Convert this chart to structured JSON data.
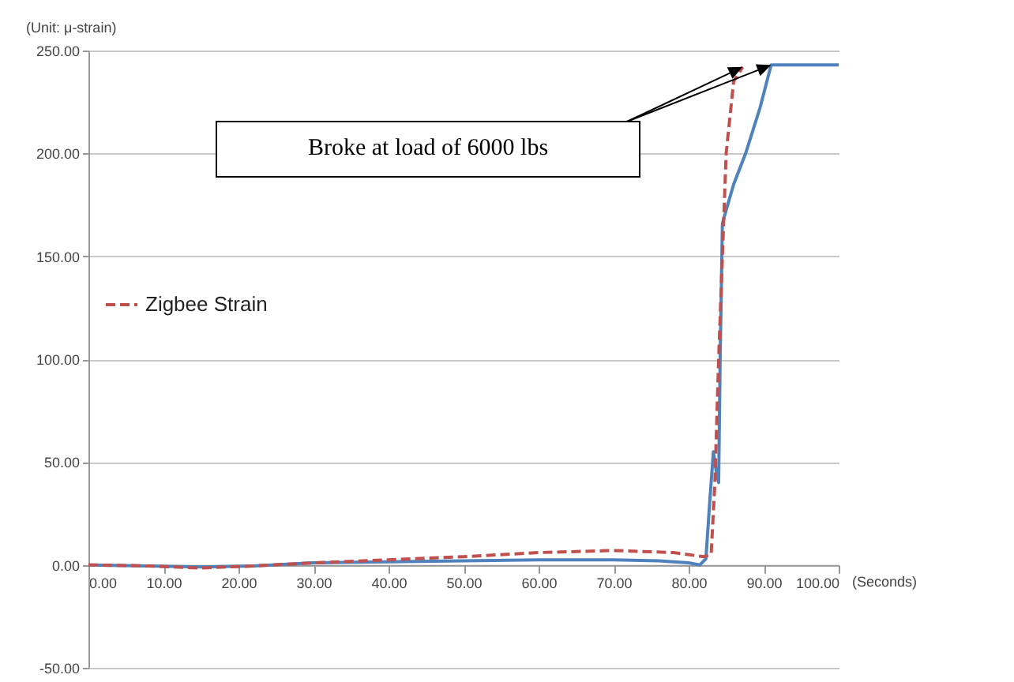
{
  "chart_data": {
    "type": "line",
    "ylabel": "(Unit: μ-strain)",
    "xlabel": "(Seconds)",
    "annotations": [
      "Broke at load of 6000 lbs"
    ],
    "xlim": [
      0,
      100
    ],
    "xticks": [
      {
        "value": 0,
        "label": "0.00"
      },
      {
        "value": 10,
        "label": "10.00"
      },
      {
        "value": 20,
        "label": "20.00"
      },
      {
        "value": 30,
        "label": "30.00"
      },
      {
        "value": 40,
        "label": "40.00"
      },
      {
        "value": 50,
        "label": "50.00"
      },
      {
        "value": 60,
        "label": "60.00"
      },
      {
        "value": 70,
        "label": "70.00"
      },
      {
        "value": 80,
        "label": "80.00"
      },
      {
        "value": 90,
        "label": "90.00"
      },
      {
        "value": 100,
        "label": "100.00"
      }
    ],
    "ylim": [
      -50,
      250
    ],
    "yticks": [
      {
        "value": -50,
        "label": "-50.00"
      },
      {
        "value": 0,
        "label": "0.00"
      },
      {
        "value": 50,
        "label": "50.00"
      },
      {
        "value": 100,
        "label": "100.00"
      },
      {
        "value": 150,
        "label": "150.00"
      },
      {
        "value": 200,
        "label": "200.00"
      },
      {
        "value": 250,
        "label": "250.00"
      }
    ],
    "grid": "y",
    "legend": "left",
    "series": [
      {
        "color": "#4f81bd",
        "line_style": "solid",
        "x": [
          0,
          8,
          15,
          22,
          30,
          40,
          50,
          60,
          70,
          76,
          80,
          81.5,
          82.3,
          82.8,
          83.3,
          83.7,
          84,
          84.2,
          84.5,
          86,
          87.6,
          89.5,
          91,
          100
        ],
        "values": [
          0,
          -0.5,
          -1,
          -0.5,
          1,
          1.5,
          2,
          2.5,
          2.5,
          2,
          1,
          0,
          3,
          30,
          55,
          45,
          40,
          100,
          166,
          185,
          200,
          222,
          243,
          243
        ]
      },
      {
        "name": "Zigbee Strain",
        "color": "#c0504d",
        "line_style": "dashed",
        "x": [
          0,
          8,
          15,
          22,
          30,
          40,
          50,
          60,
          70,
          78,
          82,
          83,
          83.5,
          84,
          84.5,
          85,
          86,
          87.2
        ],
        "values": [
          0,
          -0.5,
          -1.5,
          -0.5,
          1,
          2.5,
          4,
          6,
          7,
          6,
          4,
          5,
          40,
          100,
          150,
          200,
          235,
          242
        ]
      }
    ]
  }
}
